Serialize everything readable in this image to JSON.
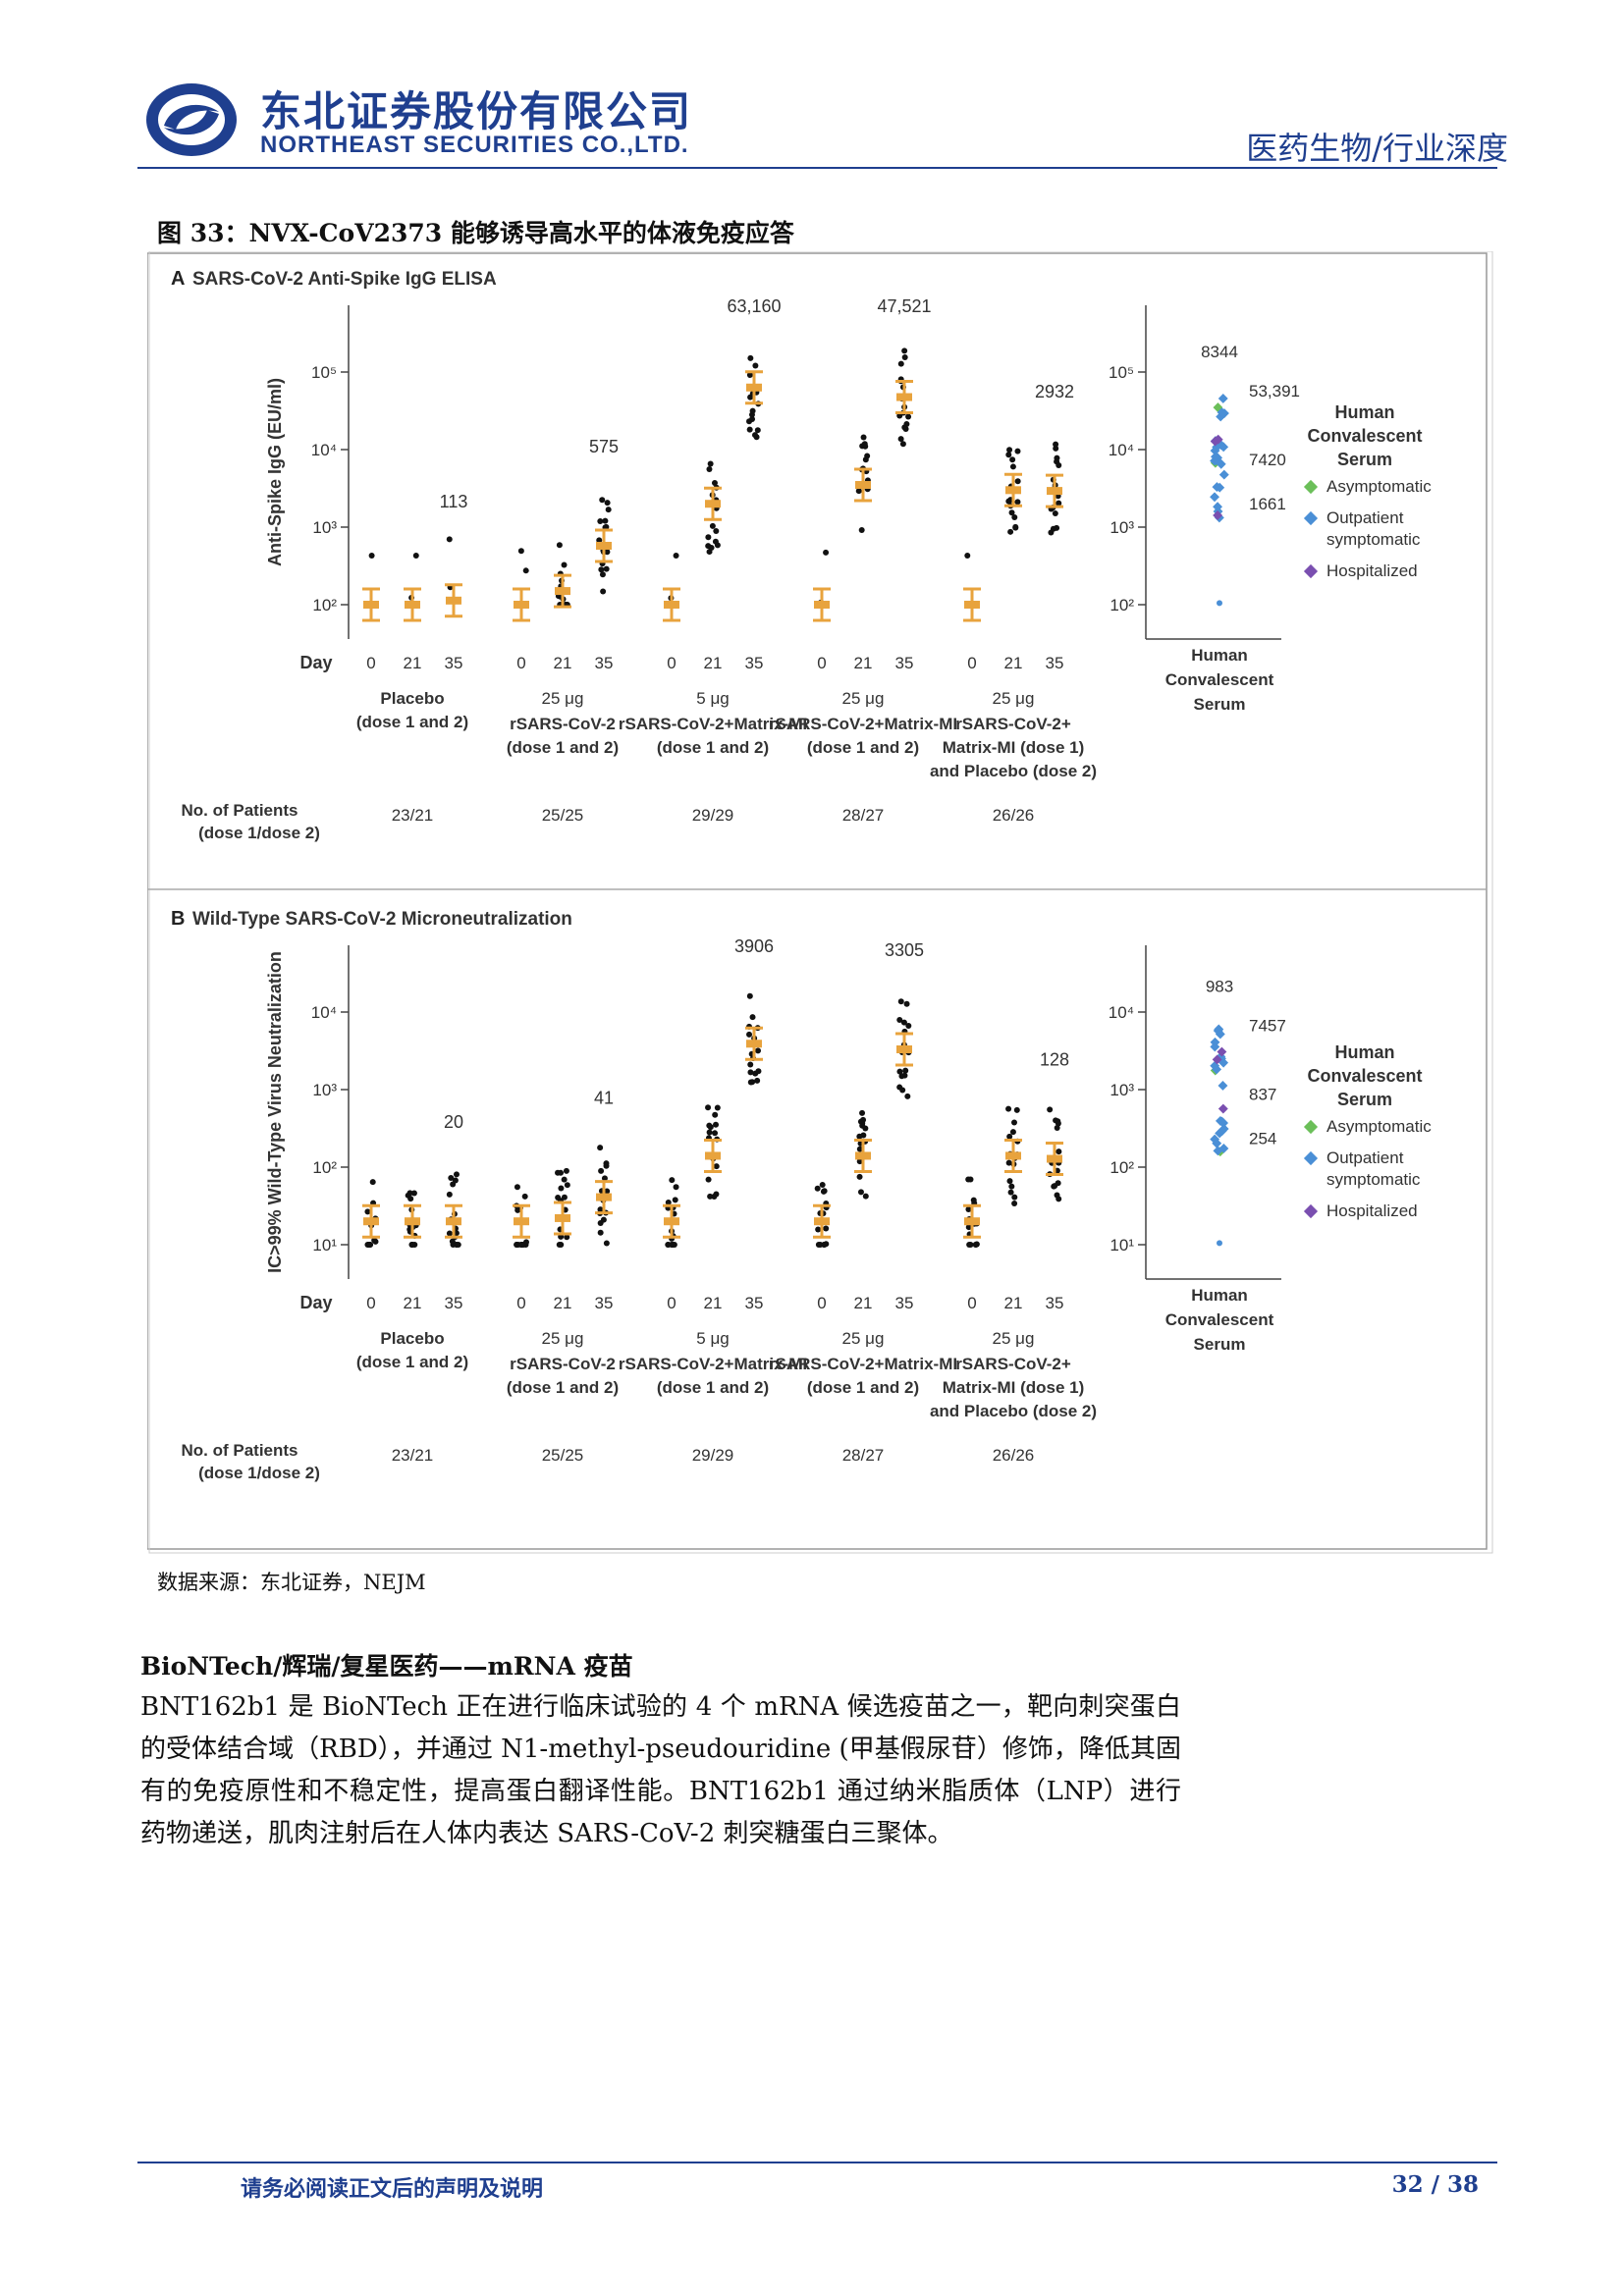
{
  "header": {
    "company_cn": "东北证券股份有限公司",
    "company_en": "NORTHEAST SECURITIES CO.,LTD.",
    "report_type": "医药生物/行业深度"
  },
  "figure": {
    "caption": "图 33：NVX-CoV2373 能够诱导高水平的体液免疫应答",
    "source": "数据来源：东北证券，NEJM",
    "colors": {
      "dot": "#111111",
      "mean": "#e8a33d",
      "asymptomatic": "#6bbf59",
      "outpatient": "#4a8fd6",
      "hospitalized": "#7a4fb0"
    }
  },
  "chart_data": [
    {
      "type": "scatter",
      "panel_label": "A",
      "title": "SARS-CoV-2 Anti-Spike IgG ELISA",
      "ylabel": "Anti-Spike IgG (EU/ml)",
      "yscale": "log",
      "ylim": [
        100,
        100000
      ],
      "yticks": [
        "10²",
        "10³",
        "10⁴",
        "10⁵"
      ],
      "day_label": "Day",
      "days": [
        "0",
        "21",
        "35"
      ],
      "groups": [
        {
          "dose": "",
          "name": [
            "Placebo",
            "(dose 1 and 2)"
          ],
          "patients": "23/21",
          "gmt_day0": 100,
          "gmt_day21": 100,
          "gmt_day35": 113,
          "labels": [
            {
              "day": "35",
              "text": "113"
            }
          ]
        },
        {
          "dose": "25 μg",
          "name": [
            "rSARS-CoV-2",
            "(dose 1 and 2)"
          ],
          "patients": "25/25",
          "gmt_day0": 100,
          "gmt_day21": 150,
          "gmt_day35": 575,
          "labels": [
            {
              "day": "35",
              "text": "575"
            }
          ]
        },
        {
          "dose": "5 μg",
          "name": [
            "rSARS-CoV-2+Matrix-MI",
            "(dose 1 and 2)"
          ],
          "patients": "29/29",
          "gmt_day0": 100,
          "gmt_day21": 2000,
          "gmt_day35": 63160,
          "labels": [
            {
              "day": "35",
              "text": "63,160"
            }
          ]
        },
        {
          "dose": "25 μg",
          "name": [
            "rSARS-CoV-2+Matrix-MI",
            "(dose 1 and 2)"
          ],
          "patients": "28/27",
          "gmt_day0": 100,
          "gmt_day21": 3500,
          "gmt_day35": 47521,
          "labels": [
            {
              "day": "35",
              "text": "47,521"
            }
          ]
        },
        {
          "dose": "25 μg",
          "name": [
            "rSARS-CoV-2+",
            "Matrix-MI (dose 1)",
            "and Placebo (dose 2)"
          ],
          "patients": "26/26",
          "gmt_day0": 100,
          "gmt_day21": 3000,
          "gmt_day35": 2932,
          "labels": [
            {
              "day": "35",
              "text": "2932"
            }
          ]
        }
      ],
      "patients_label": [
        "No. of Patients",
        "(dose 1/dose 2)"
      ],
      "convalescent": {
        "axis_label": [
          "Human",
          "Convalescent",
          "Serum"
        ],
        "values_labels": [
          "8344",
          "53,391",
          "7420",
          "1661"
        ],
        "gmt": 8344
      },
      "legend": {
        "title": [
          "Human",
          "Convalescent",
          "Serum"
        ],
        "items": [
          {
            "name": "Asymptomatic",
            "lines": [
              "Asymptomatic"
            ],
            "color": "#6bbf59"
          },
          {
            "name": "Outpatient symptomatic",
            "lines": [
              "Outpatient",
              "symptomatic"
            ],
            "color": "#4a8fd6"
          },
          {
            "name": "Hospitalized",
            "lines": [
              "Hospitalized"
            ],
            "color": "#7a4fb0"
          }
        ],
        "position": "right"
      }
    },
    {
      "type": "scatter",
      "panel_label": "B",
      "title": "Wild-Type SARS-CoV-2 Microneutralization",
      "ylabel": "IC>99% Wild-Type Virus Neutralization",
      "yscale": "log",
      "ylim": [
        10,
        10000
      ],
      "yticks": [
        "10¹",
        "10²",
        "10³",
        "10⁴"
      ],
      "day_label": "Day",
      "days": [
        "0",
        "21",
        "35"
      ],
      "groups": [
        {
          "dose": "",
          "name": [
            "Placebo",
            "(dose 1 and 2)"
          ],
          "patients": "23/21",
          "gmt_day0": 20,
          "gmt_day21": 20,
          "gmt_day35": 20,
          "labels": [
            {
              "day": "35",
              "text": "20"
            }
          ]
        },
        {
          "dose": "25 μg",
          "name": [
            "rSARS-CoV-2",
            "(dose 1 and 2)"
          ],
          "patients": "25/25",
          "gmt_day0": 20,
          "gmt_day21": 22,
          "gmt_day35": 41,
          "labels": [
            {
              "day": "35",
              "text": "41"
            }
          ]
        },
        {
          "dose": "5 μg",
          "name": [
            "rSARS-CoV-2+Matrix-MI",
            "(dose 1 and 2)"
          ],
          "patients": "29/29",
          "gmt_day0": 20,
          "gmt_day21": 140,
          "gmt_day35": 3906,
          "labels": [
            {
              "day": "35",
              "text": "3906"
            }
          ]
        },
        {
          "dose": "25 μg",
          "name": [
            "rSARS-CoV-2+Matrix-MI",
            "(dose 1 and 2)"
          ],
          "patients": "28/27",
          "gmt_day0": 20,
          "gmt_day21": 140,
          "gmt_day35": 3305,
          "labels": [
            {
              "day": "35",
              "text": "3305"
            }
          ]
        },
        {
          "dose": "25 μg",
          "name": [
            "rSARS-CoV-2+",
            "Matrix-MI (dose 1)",
            "and Placebo (dose 2)"
          ],
          "patients": "26/26",
          "gmt_day0": 20,
          "gmt_day21": 140,
          "gmt_day35": 128,
          "labels": [
            {
              "day": "35",
              "text": "128"
            }
          ]
        }
      ],
      "patients_label": [
        "No. of Patients",
        "(dose 1/dose 2)"
      ],
      "convalescent": {
        "axis_label": [
          "Human",
          "Convalescent",
          "Serum"
        ],
        "values_labels": [
          "983",
          "7457",
          "837",
          "254"
        ],
        "gmt": 983
      },
      "legend": {
        "title": [
          "Human",
          "Convalescent",
          "Serum"
        ],
        "items": [
          {
            "name": "Asymptomatic",
            "lines": [
              "Asymptomatic"
            ],
            "color": "#6bbf59"
          },
          {
            "name": "Outpatient symptomatic",
            "lines": [
              "Outpatient",
              "symptomatic"
            ],
            "color": "#4a8fd6"
          },
          {
            "name": "Hospitalized",
            "lines": [
              "Hospitalized"
            ],
            "color": "#7a4fb0"
          }
        ],
        "position": "right"
      }
    }
  ],
  "section": {
    "title": "BioNTech/辉瑞/复星医药——mRNA 疫苗",
    "body": "BNT162b1 是 BioNTech 正在进行临床试验的 4 个 mRNA 候选疫苗之一，靶向刺突蛋白的受体结合域（RBD），并通过 N1-methyl-pseudouridine (甲基假尿苷）修饰，降低其固有的免疫原性和不稳定性，提高蛋白翻译性能。BNT162b1 通过纳米脂质体（LNP）进行药物递送，肌肉注射后在人体内表达 SARS-CoV-2 刺突糖蛋白三聚体。"
  },
  "footer": {
    "notice": "请务必阅读正文后的声明及说明",
    "page": "32 / 38"
  }
}
